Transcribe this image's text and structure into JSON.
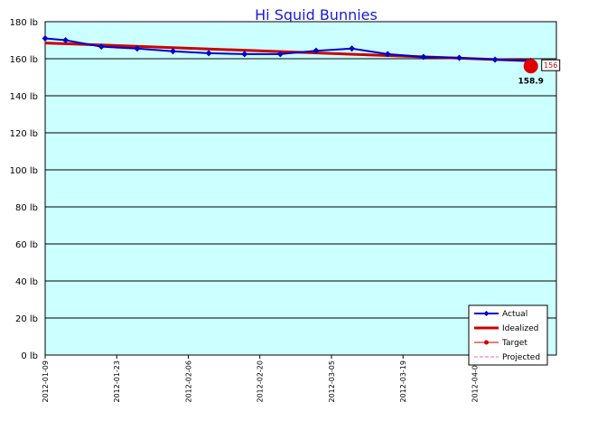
{
  "chart_data": {
    "type": "line",
    "title": "Hi Squid Bunnies",
    "xlabel": "",
    "ylabel": "",
    "ylim": [
      0,
      180
    ],
    "y_ticks": [
      "0 lb",
      "20 lb",
      "40 lb",
      "60 lb",
      "80 lb",
      "100 lb",
      "120 lb",
      "140 lb",
      "160 lb",
      "180 lb"
    ],
    "y_tick_values": [
      0,
      20,
      40,
      60,
      80,
      100,
      120,
      140,
      160,
      180
    ],
    "x_range": [
      "2012-01-09",
      "2012-04-18"
    ],
    "x_ticks": [
      "2012-01-09",
      "2012-01-23",
      "2012-02-06",
      "2012-02-20",
      "2012-03-05",
      "2012-03-19",
      "2012-04-02"
    ],
    "grid": "horizontal",
    "background": "#ccffff",
    "legend_position": "bottom-right",
    "series": [
      {
        "name": "Actual",
        "color": "#0000cc",
        "style": "line-diamond",
        "x": [
          "2012-01-09",
          "2012-01-13",
          "2012-01-20",
          "2012-01-27",
          "2012-02-03",
          "2012-02-10",
          "2012-02-17",
          "2012-02-24",
          "2012-03-02",
          "2012-03-09",
          "2012-03-16",
          "2012-03-23",
          "2012-03-30",
          "2012-04-06",
          "2012-04-13"
        ],
        "values": [
          171,
          170,
          166.5,
          165.5,
          164,
          163,
          162.5,
          162.5,
          164.3,
          165.5,
          162.5,
          161,
          160.5,
          159.5,
          158.9
        ]
      },
      {
        "name": "Idealized",
        "color": "#cc0000",
        "style": "thick-line",
        "x": [
          "2012-01-09",
          "2012-04-13"
        ],
        "values": [
          168.5,
          158.9
        ]
      },
      {
        "name": "Target",
        "color": "#cc0000",
        "style": "dot",
        "x": [
          "2012-04-13"
        ],
        "values": [
          156
        ]
      },
      {
        "name": "Projected",
        "color": "#ff66aa",
        "style": "dashed",
        "x": [],
        "values": []
      }
    ],
    "annotations": [
      {
        "text": "158.9",
        "x": "2012-04-13",
        "y": 158.9
      },
      {
        "text": "156",
        "x": "2012-04-13",
        "y": 156,
        "boxed": true
      }
    ]
  }
}
